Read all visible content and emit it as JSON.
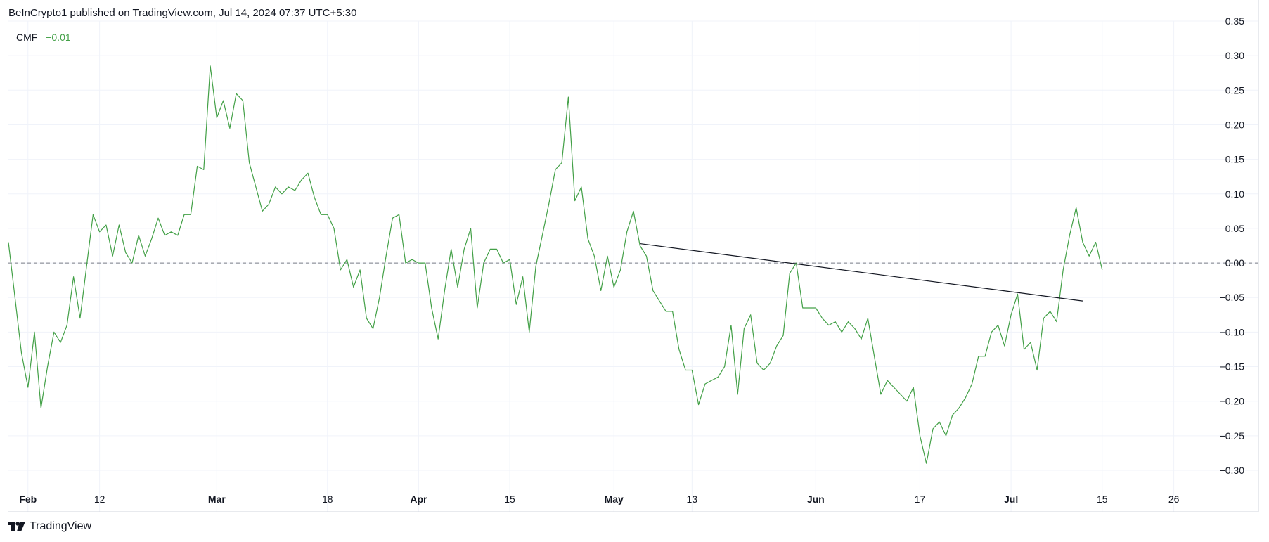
{
  "header": {
    "publisher_text": "BeInCrypto1 published on TradingView.com, Jul 14, 2024 07:37 UTC+5:30"
  },
  "legend": {
    "indicator_name": "CMF",
    "indicator_value": "−0.01"
  },
  "footer": {
    "brand": "TradingView",
    "logo_icon": "tradingview-logo-icon"
  },
  "chart_data": {
    "type": "line",
    "ylim": [
      -0.36,
      0.35
    ],
    "y_ticks": [
      {
        "value": 0.35,
        "label": "0.35"
      },
      {
        "value": 0.3,
        "label": "0.30"
      },
      {
        "value": 0.25,
        "label": "0.25"
      },
      {
        "value": 0.2,
        "label": "0.20"
      },
      {
        "value": 0.15,
        "label": "0.15"
      },
      {
        "value": 0.1,
        "label": "0.10"
      },
      {
        "value": 0.05,
        "label": "0.05"
      },
      {
        "value": 0.0,
        "label": "0.00"
      },
      {
        "value": -0.05,
        "label": "−0.05"
      },
      {
        "value": -0.1,
        "label": "−0.10"
      },
      {
        "value": -0.15,
        "label": "−0.15"
      },
      {
        "value": -0.2,
        "label": "−0.20"
      },
      {
        "value": -0.25,
        "label": "−0.25"
      },
      {
        "value": -0.3,
        "label": "−0.30"
      }
    ],
    "x_ticks": [
      {
        "date": "2024-02-01",
        "label": "Feb",
        "bold": true
      },
      {
        "date": "2024-02-12",
        "label": "12",
        "bold": false
      },
      {
        "date": "2024-03-01",
        "label": "Mar",
        "bold": true
      },
      {
        "date": "2024-03-18",
        "label": "18",
        "bold": false
      },
      {
        "date": "2024-04-01",
        "label": "Apr",
        "bold": true
      },
      {
        "date": "2024-04-15",
        "label": "15",
        "bold": false
      },
      {
        "date": "2024-05-01",
        "label": "May",
        "bold": true
      },
      {
        "date": "2024-05-13",
        "label": "13",
        "bold": false
      },
      {
        "date": "2024-06-01",
        "label": "Jun",
        "bold": true
      },
      {
        "date": "2024-06-17",
        "label": "17",
        "bold": false
      },
      {
        "date": "2024-07-01",
        "label": "Jul",
        "bold": true
      },
      {
        "date": "2024-07-15",
        "label": "15",
        "bold": false
      },
      {
        "date": "2024-07-26",
        "label": "26",
        "bold": false
      }
    ],
    "x_range": [
      "2024-01-29",
      "2024-08-08"
    ],
    "reference_line": {
      "value": 0.0,
      "style": "dashed"
    },
    "grid": true,
    "series": [
      {
        "color": "#43a047",
        "points": [
          [
            "2024-01-29",
            0.03
          ],
          [
            "2024-01-30",
            -0.05
          ],
          [
            "2024-01-31",
            -0.13
          ],
          [
            "2024-02-01",
            -0.18
          ],
          [
            "2024-02-02",
            -0.1
          ],
          [
            "2024-02-03",
            -0.21
          ],
          [
            "2024-02-04",
            -0.15
          ],
          [
            "2024-02-05",
            -0.1
          ],
          [
            "2024-02-06",
            -0.115
          ],
          [
            "2024-02-07",
            -0.09
          ],
          [
            "2024-02-08",
            -0.02
          ],
          [
            "2024-02-09",
            -0.08
          ],
          [
            "2024-02-10",
            -0.005
          ],
          [
            "2024-02-11",
            0.07
          ],
          [
            "2024-02-12",
            0.045
          ],
          [
            "2024-02-13",
            0.055
          ],
          [
            "2024-02-14",
            0.01
          ],
          [
            "2024-02-15",
            0.055
          ],
          [
            "2024-02-16",
            0.015
          ],
          [
            "2024-02-17",
            0.0
          ],
          [
            "2024-02-18",
            0.04
          ],
          [
            "2024-02-19",
            0.01
          ],
          [
            "2024-02-20",
            0.035
          ],
          [
            "2024-02-21",
            0.065
          ],
          [
            "2024-02-22",
            0.04
          ],
          [
            "2024-02-23",
            0.045
          ],
          [
            "2024-02-24",
            0.04
          ],
          [
            "2024-02-25",
            0.07
          ],
          [
            "2024-02-26",
            0.07
          ],
          [
            "2024-02-27",
            0.14
          ],
          [
            "2024-02-28",
            0.135
          ],
          [
            "2024-02-29",
            0.285
          ],
          [
            "2024-03-01",
            0.21
          ],
          [
            "2024-03-02",
            0.235
          ],
          [
            "2024-03-03",
            0.195
          ],
          [
            "2024-03-04",
            0.245
          ],
          [
            "2024-03-05",
            0.235
          ],
          [
            "2024-03-06",
            0.145
          ],
          [
            "2024-03-07",
            0.11
          ],
          [
            "2024-03-08",
            0.075
          ],
          [
            "2024-03-09",
            0.085
          ],
          [
            "2024-03-10",
            0.11
          ],
          [
            "2024-03-11",
            0.1
          ],
          [
            "2024-03-12",
            0.11
          ],
          [
            "2024-03-13",
            0.105
          ],
          [
            "2024-03-14",
            0.12
          ],
          [
            "2024-03-15",
            0.13
          ],
          [
            "2024-03-16",
            0.095
          ],
          [
            "2024-03-17",
            0.07
          ],
          [
            "2024-03-18",
            0.07
          ],
          [
            "2024-03-19",
            0.05
          ],
          [
            "2024-03-20",
            -0.01
          ],
          [
            "2024-03-21",
            0.005
          ],
          [
            "2024-03-22",
            -0.035
          ],
          [
            "2024-03-23",
            -0.01
          ],
          [
            "2024-03-24",
            -0.08
          ],
          [
            "2024-03-25",
            -0.095
          ],
          [
            "2024-03-26",
            -0.05
          ],
          [
            "2024-03-27",
            0.01
          ],
          [
            "2024-03-28",
            0.065
          ],
          [
            "2024-03-29",
            0.07
          ],
          [
            "2024-03-30",
            0.0
          ],
          [
            "2024-03-31",
            0.005
          ],
          [
            "2024-04-01",
            0.0
          ],
          [
            "2024-04-02",
            0.0
          ],
          [
            "2024-04-03",
            -0.065
          ],
          [
            "2024-04-04",
            -0.11
          ],
          [
            "2024-04-05",
            -0.04
          ],
          [
            "2024-04-06",
            0.02
          ],
          [
            "2024-04-07",
            -0.035
          ],
          [
            "2024-04-08",
            0.02
          ],
          [
            "2024-04-09",
            0.05
          ],
          [
            "2024-04-10",
            -0.065
          ],
          [
            "2024-04-11",
            0.0
          ],
          [
            "2024-04-12",
            0.02
          ],
          [
            "2024-04-13",
            0.02
          ],
          [
            "2024-04-14",
            0.0
          ],
          [
            "2024-04-15",
            0.005
          ],
          [
            "2024-04-16",
            -0.06
          ],
          [
            "2024-04-17",
            -0.02
          ],
          [
            "2024-04-18",
            -0.1
          ],
          [
            "2024-04-19",
            -0.005
          ],
          [
            "2024-04-20",
            0.04
          ],
          [
            "2024-04-21",
            0.085
          ],
          [
            "2024-04-22",
            0.135
          ],
          [
            "2024-04-23",
            0.145
          ],
          [
            "2024-04-24",
            0.24
          ],
          [
            "2024-04-25",
            0.09
          ],
          [
            "2024-04-26",
            0.11
          ],
          [
            "2024-04-27",
            0.035
          ],
          [
            "2024-04-28",
            0.01
          ],
          [
            "2024-04-29",
            -0.04
          ],
          [
            "2024-04-30",
            0.01
          ],
          [
            "2024-05-01",
            -0.035
          ],
          [
            "2024-05-02",
            -0.01
          ],
          [
            "2024-05-03",
            0.045
          ],
          [
            "2024-05-04",
            0.075
          ],
          [
            "2024-05-05",
            0.025
          ],
          [
            "2024-05-06",
            0.01
          ],
          [
            "2024-05-07",
            -0.04
          ],
          [
            "2024-05-08",
            -0.055
          ],
          [
            "2024-05-09",
            -0.07
          ],
          [
            "2024-05-10",
            -0.07
          ],
          [
            "2024-05-11",
            -0.125
          ],
          [
            "2024-05-12",
            -0.155
          ],
          [
            "2024-05-13",
            -0.155
          ],
          [
            "2024-05-14",
            -0.205
          ],
          [
            "2024-05-15",
            -0.175
          ],
          [
            "2024-05-16",
            -0.17
          ],
          [
            "2024-05-17",
            -0.165
          ],
          [
            "2024-05-18",
            -0.15
          ],
          [
            "2024-05-19",
            -0.09
          ],
          [
            "2024-05-20",
            -0.19
          ],
          [
            "2024-05-21",
            -0.095
          ],
          [
            "2024-05-22",
            -0.075
          ],
          [
            "2024-05-23",
            -0.145
          ],
          [
            "2024-05-24",
            -0.155
          ],
          [
            "2024-05-25",
            -0.145
          ],
          [
            "2024-05-26",
            -0.12
          ],
          [
            "2024-05-27",
            -0.105
          ],
          [
            "2024-05-28",
            -0.015
          ],
          [
            "2024-05-29",
            0.0
          ],
          [
            "2024-05-30",
            -0.065
          ],
          [
            "2024-05-31",
            -0.065
          ],
          [
            "2024-06-01",
            -0.065
          ],
          [
            "2024-06-02",
            -0.08
          ],
          [
            "2024-06-03",
            -0.09
          ],
          [
            "2024-06-04",
            -0.085
          ],
          [
            "2024-06-05",
            -0.1
          ],
          [
            "2024-06-06",
            -0.085
          ],
          [
            "2024-06-07",
            -0.095
          ],
          [
            "2024-06-08",
            -0.11
          ],
          [
            "2024-06-09",
            -0.08
          ],
          [
            "2024-06-10",
            -0.135
          ],
          [
            "2024-06-11",
            -0.19
          ],
          [
            "2024-06-12",
            -0.17
          ],
          [
            "2024-06-13",
            -0.18
          ],
          [
            "2024-06-14",
            -0.19
          ],
          [
            "2024-06-15",
            -0.2
          ],
          [
            "2024-06-16",
            -0.18
          ],
          [
            "2024-06-17",
            -0.25
          ],
          [
            "2024-06-18",
            -0.29
          ],
          [
            "2024-06-19",
            -0.24
          ],
          [
            "2024-06-20",
            -0.23
          ],
          [
            "2024-06-21",
            -0.25
          ],
          [
            "2024-06-22",
            -0.22
          ],
          [
            "2024-06-23",
            -0.21
          ],
          [
            "2024-06-24",
            -0.195
          ],
          [
            "2024-06-25",
            -0.175
          ],
          [
            "2024-06-26",
            -0.135
          ],
          [
            "2024-06-27",
            -0.135
          ],
          [
            "2024-06-28",
            -0.1
          ],
          [
            "2024-06-29",
            -0.09
          ],
          [
            "2024-06-30",
            -0.12
          ],
          [
            "2024-07-01",
            -0.075
          ],
          [
            "2024-07-02",
            -0.045
          ],
          [
            "2024-07-03",
            -0.125
          ],
          [
            "2024-07-04",
            -0.115
          ],
          [
            "2024-07-05",
            -0.155
          ],
          [
            "2024-07-06",
            -0.08
          ],
          [
            "2024-07-07",
            -0.07
          ],
          [
            "2024-07-08",
            -0.085
          ],
          [
            "2024-07-09",
            -0.01
          ],
          [
            "2024-07-10",
            0.04
          ],
          [
            "2024-07-11",
            0.08
          ],
          [
            "2024-07-12",
            0.03
          ],
          [
            "2024-07-13",
            0.01
          ],
          [
            "2024-07-14",
            0.03
          ],
          [
            "2024-07-15",
            -0.01
          ]
        ]
      }
    ],
    "annotations": [
      {
        "type": "trendline",
        "color": "#131722",
        "from": [
          "2024-05-05",
          0.028
        ],
        "to": [
          "2024-07-12",
          -0.055
        ]
      }
    ]
  }
}
